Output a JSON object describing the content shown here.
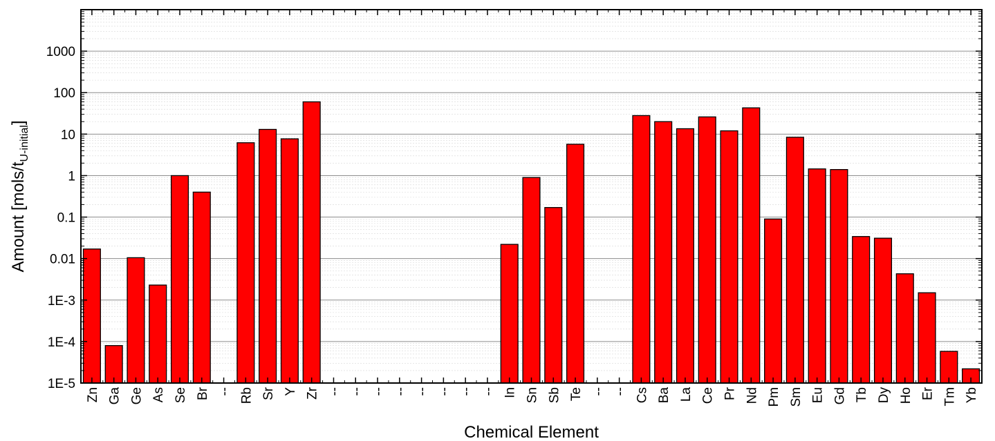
{
  "chart_data": {
    "type": "bar",
    "title": "",
    "xlabel": "Chemical Element",
    "ylabel_main": "Amount [mols/t",
    "ylabel_sub": "U-initial",
    "ylabel_close": "]",
    "yscale": "log",
    "ylim": [
      1e-05,
      10000
    ],
    "yticks": [
      1e-05,
      0.0001,
      0.001,
      0.01,
      0.1,
      1,
      10,
      100,
      1000
    ],
    "ytick_labels": [
      "1E-5",
      "1E-4",
      "1E-3",
      "0.01",
      "0.1",
      "1",
      "10",
      "100",
      "1000"
    ],
    "grid": true,
    "bar_color": "#ff0000",
    "categories": [
      "Zn",
      "Ga",
      "Ge",
      "As",
      "Se",
      "Br",
      "--",
      "Rb",
      "Sr",
      "Y",
      "Zr",
      "--",
      "--",
      "--",
      "--",
      "--",
      "--",
      "--",
      "--",
      "In",
      "Sn",
      "Sb",
      "Te",
      "--",
      "--",
      "Cs",
      "Ba",
      "La",
      "Ce",
      "Pr",
      "Nd",
      "Pm",
      "Sm",
      "Eu",
      "Gd",
      "Tb",
      "Dy",
      "Ho",
      "Er",
      "Tm",
      "Yb"
    ],
    "values": [
      0.017,
      8e-05,
      0.0105,
      0.0023,
      1.0,
      0.4,
      null,
      6.2,
      13,
      7.7,
      60,
      null,
      null,
      null,
      null,
      null,
      null,
      null,
      null,
      0.022,
      0.9,
      0.17,
      5.7,
      null,
      null,
      28,
      20,
      13.5,
      26,
      12,
      43,
      0.09,
      8.4,
      1.45,
      1.4,
      0.034,
      0.031,
      0.0043,
      0.0015,
      5.8e-05,
      2.2e-05
    ]
  }
}
